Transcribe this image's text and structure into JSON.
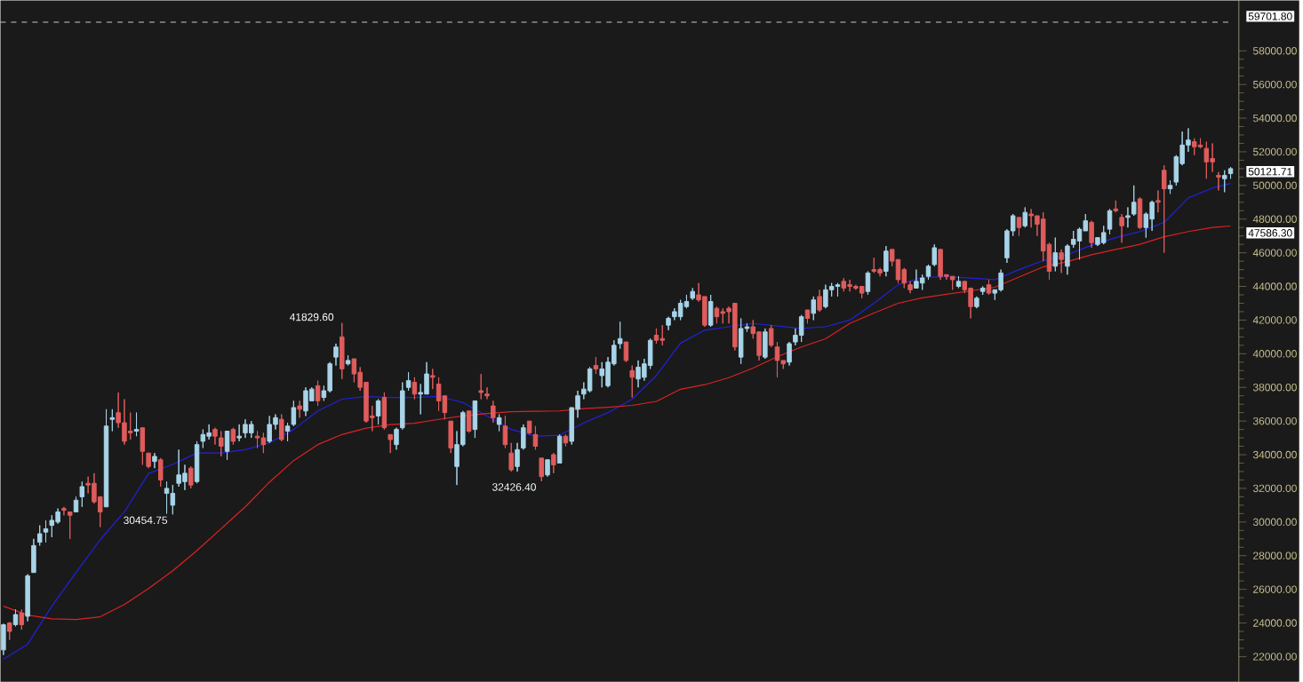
{
  "chart_data": {
    "type": "candlestick",
    "categories": [
      null,
      null,
      null,
      null,
      null,
      null,
      null,
      null,
      null,
      null,
      null,
      null,
      null,
      null,
      null,
      null,
      null,
      null,
      null,
      null,
      null,
      null,
      null,
      null,
      null,
      null,
      null,
      null,
      null,
      null,
      null,
      null,
      null,
      null,
      null,
      null,
      null,
      null,
      null,
      null,
      null,
      null,
      null,
      null,
      null,
      null,
      null,
      null,
      null,
      null,
      null,
      null,
      null,
      null,
      null,
      null,
      null,
      null,
      null,
      null,
      null,
      null,
      null,
      null,
      null,
      null,
      null,
      null,
      null,
      null,
      null,
      null,
      null,
      null,
      null,
      null,
      null,
      null,
      null,
      null,
      null,
      null,
      null,
      null,
      null,
      null,
      null,
      null,
      null,
      null,
      null,
      null,
      null,
      null,
      null,
      null,
      null,
      null,
      null,
      null,
      null,
      null,
      null,
      null,
      null,
      null,
      null,
      null,
      null,
      null,
      null,
      null,
      null,
      null,
      null,
      null,
      null,
      null,
      null,
      null,
      null,
      null,
      null,
      null,
      null,
      null,
      null,
      null,
      null,
      null,
      null,
      null,
      null,
      null,
      null,
      null,
      null,
      null,
      null,
      null,
      null,
      null,
      null,
      null,
      null,
      null,
      null,
      null,
      null,
      null,
      null,
      null,
      null,
      null,
      null,
      null,
      null,
      null,
      null,
      null,
      null,
      null,
      null,
      null,
      null,
      null,
      null,
      null,
      null,
      null,
      null,
      null,
      null,
      null,
      null,
      null,
      null,
      null,
      null,
      null,
      null,
      null,
      null,
      null,
      null,
      null,
      null,
      null,
      null,
      null,
      null,
      null,
      null,
      null,
      null,
      null,
      null,
      null,
      null,
      null,
      null,
      null,
      null,
      null
    ],
    "ohlc": [
      [
        22400,
        23950,
        22100,
        23900
      ],
      [
        24000,
        24050,
        23000,
        23500
      ],
      [
        23900,
        24800,
        23800,
        24500
      ],
      [
        24600,
        24800,
        23600,
        23900
      ],
      [
        24400,
        26900,
        24100,
        26800
      ],
      [
        27000,
        29000,
        27000,
        28600
      ],
      [
        28800,
        29800,
        28600,
        29300
      ],
      [
        29400,
        30100,
        28800,
        29600
      ],
      [
        29800,
        30400,
        29100,
        30100
      ],
      [
        30000,
        30800,
        29900,
        30600
      ],
      [
        30800,
        30900,
        30400,
        30700
      ],
      [
        30600,
        30600,
        29000,
        30400
      ],
      [
        30600,
        31500,
        30600,
        31300
      ],
      [
        31500,
        32400,
        30900,
        32100
      ],
      [
        32300,
        32700,
        31700,
        32200
      ],
      [
        32300,
        32900,
        31100,
        31200
      ],
      [
        31500,
        31500,
        29700,
        30600
      ],
      [
        30900,
        36700,
        30900,
        35700
      ],
      [
        36100,
        36700,
        35400,
        36200
      ],
      [
        36500,
        37700,
        35600,
        35900
      ],
      [
        35900,
        37300,
        34600,
        34800
      ],
      [
        35400,
        36500,
        34900,
        35300
      ],
      [
        35400,
        36500,
        35100,
        35500
      ],
      [
        35600,
        35600,
        33400,
        34200
      ],
      [
        34100,
        34100,
        33200,
        33300
      ],
      [
        33600,
        34100,
        33200,
        33900
      ],
      [
        33700,
        33800,
        32100,
        32500
      ],
      [
        31700,
        32400,
        30500,
        32000
      ],
      [
        31000,
        32200,
        30454.75,
        31700
      ],
      [
        32300,
        34300,
        32100,
        32800
      ],
      [
        32400,
        33400,
        31900,
        32900
      ],
      [
        33200,
        33300,
        32000,
        32200
      ],
      [
        32400,
        34800,
        32300,
        34600
      ],
      [
        34800,
        35500,
        34400,
        35200
      ],
      [
        35100,
        35800,
        34900,
        35300
      ],
      [
        35500,
        35600,
        34600,
        35100
      ],
      [
        35000,
        35400,
        33900,
        34500
      ],
      [
        34200,
        35400,
        33700,
        35400
      ],
      [
        35500,
        35600,
        34600,
        34800
      ],
      [
        35000,
        35800,
        34800,
        35100
      ],
      [
        35300,
        36100,
        35000,
        35800
      ],
      [
        35300,
        36000,
        35000,
        35800
      ],
      [
        35100,
        35400,
        34400,
        35000
      ],
      [
        35000,
        35300,
        34100,
        34600
      ],
      [
        34800,
        36300,
        34700,
        35800
      ],
      [
        35800,
        36400,
        35500,
        36200
      ],
      [
        36100,
        36400,
        34800,
        34900
      ],
      [
        35400,
        35900,
        34800,
        35700
      ],
      [
        35800,
        37200,
        35700,
        36800
      ],
      [
        36900,
        37200,
        36200,
        36700
      ],
      [
        36600,
        38000,
        36300,
        37800
      ],
      [
        37200,
        38000,
        37200,
        37900
      ],
      [
        38100,
        38400,
        36900,
        37200
      ],
      [
        37400,
        38100,
        37200,
        37800
      ],
      [
        37800,
        39500,
        37700,
        39400
      ],
      [
        39800,
        40600,
        39300,
        40400
      ],
      [
        41000,
        41829.6,
        38500,
        39100
      ],
      [
        39400,
        39900,
        39300,
        39600
      ],
      [
        39700,
        39700,
        38300,
        38800
      ],
      [
        38900,
        39200,
        37800,
        38000
      ],
      [
        38300,
        38300,
        35900,
        36000
      ],
      [
        36300,
        36900,
        35400,
        36200
      ],
      [
        36300,
        37300,
        35800,
        37200
      ],
      [
        37400,
        37700,
        35500,
        35600
      ],
      [
        35200,
        35200,
        34100,
        34900
      ],
      [
        34600,
        35600,
        34300,
        35500
      ],
      [
        35600,
        38300,
        35500,
        37800
      ],
      [
        38000,
        38900,
        37800,
        38400
      ],
      [
        38300,
        38600,
        37300,
        37600
      ],
      [
        37600,
        38200,
        36400,
        37700
      ],
      [
        37600,
        39500,
        37600,
        38800
      ],
      [
        38700,
        39100,
        37900,
        38600
      ],
      [
        38200,
        38600,
        36600,
        37200
      ],
      [
        37500,
        37500,
        36100,
        36500
      ],
      [
        36000,
        36000,
        34100,
        34400
      ],
      [
        33300,
        35400,
        32200,
        34600
      ],
      [
        34600,
        36600,
        34500,
        36500
      ],
      [
        36600,
        36600,
        35300,
        35400
      ],
      [
        35500,
        37200,
        35000,
        37200
      ],
      [
        37800,
        38800,
        37300,
        37700
      ],
      [
        37600,
        38000,
        37300,
        37500
      ],
      [
        36900,
        37200,
        35900,
        36200
      ],
      [
        35800,
        36400,
        35400,
        36200
      ],
      [
        35700,
        36300,
        34400,
        34600
      ],
      [
        34100,
        34700,
        33000,
        33100
      ],
      [
        33300,
        34700,
        33000,
        34300
      ],
      [
        34400,
        35800,
        34300,
        35600
      ],
      [
        36000,
        36000,
        35200,
        35300
      ],
      [
        35200,
        35700,
        34300,
        34500
      ],
      [
        33800,
        33800,
        32426.4,
        32700
      ],
      [
        32800,
        33700,
        32700,
        33700
      ],
      [
        34000,
        34100,
        32900,
        33400
      ],
      [
        33500,
        35200,
        33500,
        35100
      ],
      [
        35100,
        35200,
        34500,
        34700
      ],
      [
        34800,
        36800,
        34600,
        36800
      ],
      [
        36700,
        37800,
        36200,
        37500
      ],
      [
        37600,
        38300,
        37300,
        37900
      ],
      [
        37800,
        39200,
        37700,
        39100
      ],
      [
        39300,
        39800,
        38800,
        39100
      ],
      [
        38700,
        39500,
        38000,
        39100
      ],
      [
        38100,
        39800,
        38000,
        39500
      ],
      [
        39400,
        40800,
        39300,
        40500
      ],
      [
        40600,
        41900,
        40300,
        40900
      ],
      [
        40700,
        40700,
        39500,
        39600
      ],
      [
        39000,
        39300,
        37400,
        38600
      ],
      [
        38500,
        39600,
        38000,
        39200
      ],
      [
        38600,
        39700,
        38400,
        39400
      ],
      [
        39300,
        40900,
        39100,
        40800
      ],
      [
        41100,
        41500,
        40600,
        40800
      ],
      [
        40900,
        41700,
        40500,
        40800
      ],
      [
        41700,
        42200,
        41400,
        42100
      ],
      [
        42200,
        42700,
        42000,
        42500
      ],
      [
        42200,
        43200,
        42000,
        43000
      ],
      [
        42800,
        43500,
        42700,
        43100
      ],
      [
        43300,
        43900,
        43200,
        43700
      ],
      [
        43500,
        44200,
        43100,
        43200
      ],
      [
        43400,
        43400,
        41600,
        41700
      ],
      [
        41700,
        43500,
        41600,
        43100
      ],
      [
        42700,
        42800,
        41800,
        42200
      ],
      [
        42500,
        42700,
        41800,
        42400
      ],
      [
        42700,
        42800,
        41800,
        42500
      ],
      [
        43000,
        43000,
        40200,
        40400
      ],
      [
        39800,
        42100,
        39400,
        41500
      ],
      [
        41500,
        41800,
        41300,
        41600
      ],
      [
        41600,
        42000,
        40900,
        41200
      ],
      [
        41300,
        41300,
        39600,
        39900
      ],
      [
        39800,
        41500,
        39700,
        41300
      ],
      [
        41500,
        41700,
        40400,
        40500
      ],
      [
        40400,
        40700,
        38600,
        39600
      ],
      [
        39600,
        39600,
        39100,
        39400
      ],
      [
        39500,
        40700,
        39300,
        40600
      ],
      [
        40700,
        41500,
        40500,
        41100
      ],
      [
        41100,
        42300,
        40700,
        42200
      ],
      [
        42600,
        42600,
        41800,
        42100
      ],
      [
        42400,
        43400,
        42000,
        43200
      ],
      [
        43400,
        43800,
        42500,
        42600
      ],
      [
        42800,
        44100,
        42700,
        43800
      ],
      [
        43800,
        44200,
        43400,
        44000
      ],
      [
        44000,
        44200,
        43400,
        44100
      ],
      [
        44300,
        44500,
        43700,
        43900
      ],
      [
        44100,
        44400,
        43700,
        44000
      ],
      [
        44000,
        44100,
        43800,
        43900
      ],
      [
        44000,
        44000,
        43300,
        43600
      ],
      [
        43700,
        44900,
        43500,
        44800
      ],
      [
        45000,
        45700,
        44800,
        44900
      ],
      [
        45000,
        45100,
        44600,
        44800
      ],
      [
        44900,
        46400,
        44600,
        46100
      ],
      [
        46200,
        46200,
        45200,
        45500
      ],
      [
        45600,
        45600,
        44200,
        44400
      ],
      [
        45000,
        45100,
        43900,
        44200
      ],
      [
        44100,
        44300,
        43600,
        43800
      ],
      [
        43900,
        45000,
        43900,
        44300
      ],
      [
        44200,
        44700,
        43800,
        44500
      ],
      [
        44600,
        45300,
        44400,
        45200
      ],
      [
        45300,
        46500,
        45200,
        46300
      ],
      [
        46200,
        46200,
        44400,
        44600
      ],
      [
        44700,
        44700,
        44400,
        44600
      ],
      [
        44600,
        44600,
        43800,
        44400
      ],
      [
        44000,
        44600,
        43900,
        44300
      ],
      [
        44300,
        44300,
        43600,
        43800
      ],
      [
        43900,
        43900,
        42100,
        42800
      ],
      [
        42800,
        43400,
        42700,
        43300
      ],
      [
        43700,
        44000,
        43500,
        43900
      ],
      [
        44100,
        44400,
        43500,
        43600
      ],
      [
        43600,
        43800,
        43200,
        43800
      ],
      [
        43800,
        45000,
        43700,
        44800
      ],
      [
        45700,
        47400,
        45400,
        47300
      ],
      [
        47300,
        48300,
        47000,
        48200
      ],
      [
        48100,
        48100,
        47000,
        47500
      ],
      [
        47600,
        48700,
        47500,
        48400
      ],
      [
        48300,
        48600,
        47500,
        48200
      ],
      [
        48200,
        48200,
        47000,
        47700
      ],
      [
        48000,
        48400,
        45500,
        46100
      ],
      [
        46500,
        46600,
        44400,
        44900
      ],
      [
        45200,
        46900,
        44900,
        46000
      ],
      [
        46000,
        46200,
        44800,
        45600
      ],
      [
        45200,
        46500,
        44700,
        46400
      ],
      [
        46500,
        47300,
        46300,
        46800
      ],
      [
        46700,
        47500,
        45600,
        47400
      ],
      [
        47300,
        48300,
        47300,
        47900
      ],
      [
        47800,
        47900,
        46300,
        46600
      ],
      [
        46500,
        46900,
        46400,
        46900
      ],
      [
        46600,
        47600,
        46500,
        47200
      ],
      [
        47400,
        48600,
        47100,
        48500
      ],
      [
        48600,
        49100,
        48400,
        48500
      ],
      [
        48100,
        48300,
        46600,
        47600
      ],
      [
        48100,
        48700,
        47500,
        48200
      ],
      [
        48300,
        50000,
        48200,
        49000
      ],
      [
        49200,
        49300,
        47400,
        47500
      ],
      [
        47500,
        48400,
        46900,
        48300
      ],
      [
        48000,
        49100,
        47300,
        49000
      ],
      [
        49100,
        49700,
        48400,
        49000
      ],
      [
        50900,
        51200,
        46000,
        49800
      ],
      [
        49800,
        50300,
        49500,
        50000
      ],
      [
        50200,
        51800,
        50000,
        51700
      ],
      [
        51300,
        53200,
        51200,
        52400
      ],
      [
        52400,
        53400,
        52000,
        52700
      ],
      [
        52600,
        52800,
        51800,
        52300
      ],
      [
        52400,
        52800,
        52200,
        52300
      ],
      [
        52200,
        52600,
        50400,
        51400
      ],
      [
        51600,
        52500,
        50800,
        51400
      ],
      [
        50600,
        50800,
        49700,
        50500
      ],
      [
        50400,
        50900,
        49600,
        50600
      ],
      [
        50700,
        51100,
        50400,
        51000
      ]
    ],
    "series": [
      {
        "type": "line",
        "color": "#2222dd",
        "values": [
          21850,
          null,
          null,
          null,
          22740,
          null,
          null,
          null,
          25000,
          null,
          null,
          null,
          27000,
          null,
          null,
          null,
          28950,
          null,
          null,
          null,
          30600,
          null,
          null,
          null,
          32890,
          null,
          null,
          null,
          33420,
          null,
          null,
          null,
          34100,
          null,
          null,
          null,
          34100,
          null,
          null,
          null,
          34300,
          null,
          null,
          null,
          34700,
          null,
          null,
          null,
          35500,
          null,
          null,
          null,
          36600,
          null,
          null,
          null,
          37300,
          null,
          null,
          null,
          37450,
          null,
          null,
          null,
          37400,
          null,
          null,
          null,
          37400,
          null,
          null,
          null,
          37470,
          null,
          null,
          null,
          37100,
          null,
          null,
          null,
          36300,
          null,
          null,
          null,
          35500,
          null,
          null,
          null,
          35100,
          null,
          null,
          null,
          35160,
          null,
          null,
          null,
          35890,
          null,
          null,
          null,
          36500,
          null,
          null,
          null,
          37300,
          null,
          null,
          null,
          38700,
          null,
          null,
          null,
          40630,
          null,
          null,
          null,
          41400,
          null,
          null,
          null,
          41600,
          null,
          null,
          null,
          41800,
          null,
          null,
          null,
          41650,
          null,
          null,
          null,
          41500,
          null,
          null,
          null,
          41600,
          null,
          null,
          null,
          42000,
          null,
          null,
          null,
          43000,
          null,
          null,
          null,
          44100,
          null,
          null,
          null,
          44530,
          null,
          null,
          null,
          44580,
          null,
          null,
          null,
          44500,
          null,
          null,
          null,
          44400,
          null,
          null,
          null,
          45000,
          null,
          null,
          null,
          45530,
          null,
          null,
          null,
          45890,
          null,
          null,
          null,
          46450,
          null,
          null,
          null,
          46900,
          null,
          null,
          null,
          47260,
          null,
          null,
          null,
          47800,
          null,
          null,
          null,
          49260,
          null,
          null,
          null,
          49850,
          null,
          null,
          50120
        ]
      },
      {
        "type": "line",
        "color": "#dd2222",
        "values": [
          25000,
          null,
          null,
          null,
          24470,
          null,
          null,
          null,
          24250,
          null,
          null,
          null,
          24210,
          null,
          null,
          null,
          24370,
          null,
          null,
          null,
          25100,
          null,
          null,
          null,
          26050,
          null,
          null,
          null,
          27100,
          null,
          null,
          null,
          28300,
          null,
          null,
          null,
          29600,
          null,
          null,
          null,
          30900,
          null,
          null,
          null,
          32370,
          null,
          null,
          null,
          33650,
          null,
          null,
          null,
          34600,
          null,
          null,
          null,
          35200,
          null,
          null,
          null,
          35580,
          null,
          null,
          null,
          35790,
          null,
          null,
          null,
          35870,
          null,
          null,
          null,
          36100,
          null,
          null,
          null,
          36300,
          null,
          null,
          null,
          36450,
          null,
          null,
          null,
          36550,
          null,
          null,
          null,
          36580,
          null,
          null,
          null,
          36600,
          null,
          null,
          null,
          36740,
          null,
          null,
          null,
          36820,
          null,
          null,
          null,
          36930,
          null,
          null,
          null,
          37170,
          null,
          null,
          null,
          37890,
          null,
          null,
          null,
          38160,
          null,
          null,
          null,
          38580,
          null,
          null,
          null,
          39150,
          null,
          null,
          null,
          39820,
          null,
          null,
          null,
          40400,
          null,
          null,
          null,
          40890,
          null,
          null,
          null,
          41800,
          null,
          null,
          null,
          42420,
          null,
          null,
          null,
          43000,
          null,
          null,
          null,
          43320,
          null,
          null,
          null,
          43530,
          null,
          null,
          null,
          43740,
          null,
          null,
          null,
          43950,
          null,
          null,
          null,
          44560,
          null,
          null,
          null,
          45160,
          null,
          null,
          null,
          45470,
          null,
          null,
          null,
          45880,
          null,
          null,
          null,
          46200,
          null,
          null,
          null,
          46500,
          null,
          null,
          null,
          46950,
          null,
          null,
          null,
          47260,
          null,
          null,
          null,
          47500,
          null,
          null,
          47590
        ]
      }
    ],
    "ylim": [
      20500,
      61000
    ],
    "yticks": [
      {
        "value": 22000,
        "label": "22000.00"
      },
      {
        "value": 24000,
        "label": "24000.00"
      },
      {
        "value": 26000,
        "label": "26000.00"
      },
      {
        "value": 28000,
        "label": "28000.00"
      },
      {
        "value": 30000,
        "label": "30000.00"
      },
      {
        "value": 32000,
        "label": "32000.00"
      },
      {
        "value": 34000,
        "label": "34000.00"
      },
      {
        "value": 36000,
        "label": "36000.00"
      },
      {
        "value": 38000,
        "label": "38000.00"
      },
      {
        "value": 40000,
        "label": "40000.00"
      },
      {
        "value": 42000,
        "label": "42000.00"
      },
      {
        "value": 44000,
        "label": "44000.00"
      },
      {
        "value": 46000,
        "label": "46000.00"
      },
      {
        "value": 48000,
        "label": "48000.00"
      },
      {
        "value": 50000,
        "label": "50000.00"
      },
      {
        "value": 52000,
        "label": "52000.00"
      },
      {
        "value": 54000,
        "label": "54000.00"
      },
      {
        "value": 56000,
        "label": "56000.00"
      },
      {
        "value": 58000,
        "label": "58000.00"
      }
    ],
    "ref_lines": [
      {
        "axis": "y",
        "value": 59701.8,
        "label": "59701.80",
        "color": "#cccccc",
        "line_style": "dashed"
      }
    ],
    "annotations": [
      "41829.60",
      "30454.75",
      "32426.40",
      "50121.71",
      "47586.30"
    ]
  }
}
